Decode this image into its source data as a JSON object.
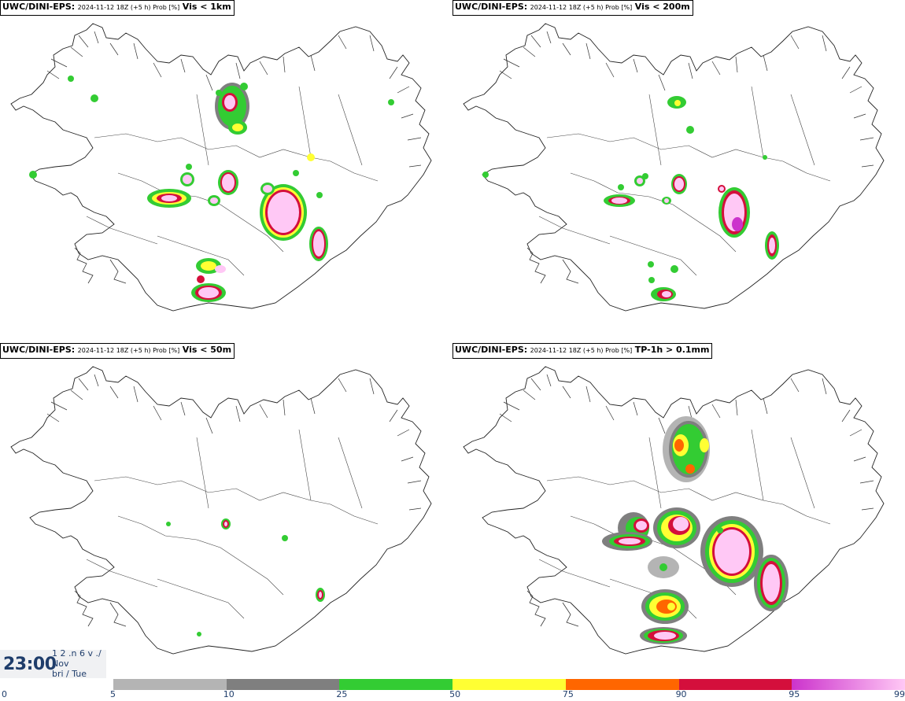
{
  "panels": [
    {
      "model": "UWC/DINI-EPS",
      "meta": "2024-11-12 18Z (+5 h) Prob [%]",
      "variable": "Vis < 1km"
    },
    {
      "model": "UWC/DINI-EPS",
      "meta": "2024-11-12 18Z (+5 h) Prob [%]",
      "variable": "Vis < 200m"
    },
    {
      "model": "UWC/DINI-EPS",
      "meta": "2024-11-12 18Z (+5 h) Prob [%]",
      "variable": "Vis < 50m"
    },
    {
      "model": "UWC/DINI-EPS",
      "meta": "2024-11-12 18Z (+5 h) Prob [%]",
      "variable": "TP-1h > 0.1mm"
    }
  ],
  "time_box": {
    "time": "23:00",
    "line1": "1 2 .n 6 v ./",
    "line2": "Nov",
    "line3": "bri / Tue"
  },
  "colorbar": {
    "ticks": [
      "0",
      "5",
      "10",
      "25",
      "50",
      "75",
      "90",
      "95",
      "99"
    ],
    "segments": [
      {
        "from": "5",
        "to": "10",
        "color": "#b4b4b4"
      },
      {
        "from": "10",
        "to": "25",
        "color": "#7f7f7f"
      },
      {
        "from": "25",
        "to": "50",
        "color": "#33cc33"
      },
      {
        "from": "50",
        "to": "75",
        "color": "#ffff33"
      },
      {
        "from": "75",
        "to": "90",
        "color": "#ff6600"
      },
      {
        "from": "90",
        "to": "95",
        "color": "#d40f3c"
      },
      {
        "from": "95",
        "to": "99",
        "color": "#cc33cc",
        "color_end": "#ffc8f5"
      }
    ]
  }
}
